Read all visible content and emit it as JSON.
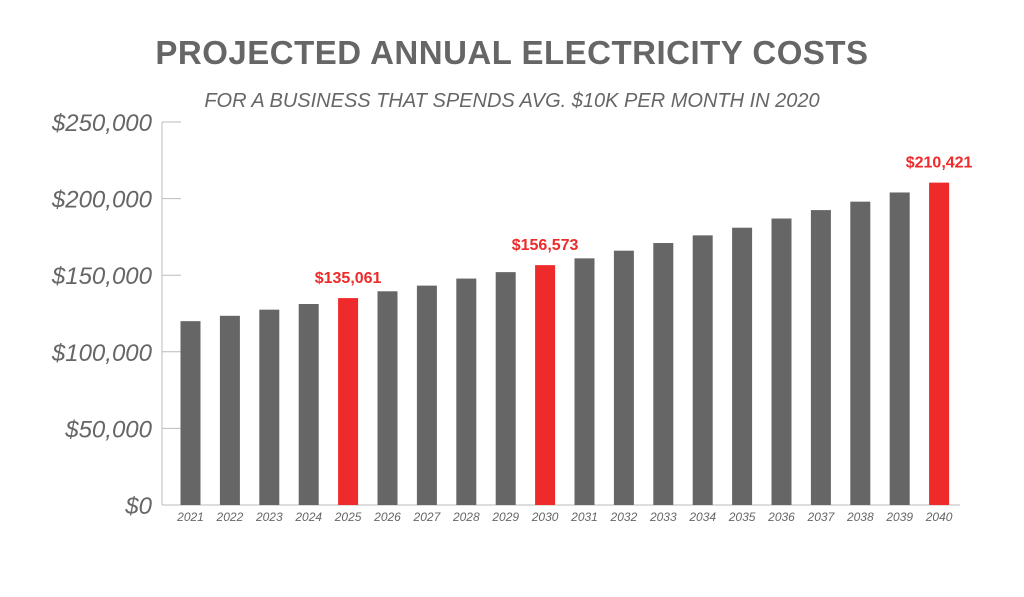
{
  "chart_data": {
    "type": "bar",
    "title": "PROJECTED ANNUAL ELECTRICITY COSTS",
    "subtitle": "FOR A BUSINESS THAT SPENDS AVG. $10K PER MONTH IN 2020",
    "xlabel": "",
    "ylabel": "",
    "ylim": [
      0,
      250000
    ],
    "yticks": [
      0,
      50000,
      100000,
      150000,
      200000,
      250000
    ],
    "ytick_labels": [
      "$0",
      "$50,000",
      "$100,000",
      "$150,000",
      "$200,000",
      "$250,000"
    ],
    "categories": [
      "2021",
      "2022",
      "2023",
      "2024",
      "2025",
      "2026",
      "2027",
      "2028",
      "2029",
      "2030",
      "2031",
      "2032",
      "2033",
      "2034",
      "2035",
      "2036",
      "2037",
      "2038",
      "2039",
      "2040"
    ],
    "values": [
      120000,
      123500,
      127500,
      131200,
      135061,
      139500,
      143200,
      147800,
      152000,
      156573,
      161000,
      166000,
      171000,
      176000,
      181000,
      187000,
      192500,
      198000,
      204000,
      210421
    ],
    "highlighted": [
      "2025",
      "2030",
      "2040"
    ],
    "data_labels": [
      {
        "category": "2025",
        "text": "$135,061"
      },
      {
        "category": "2030",
        "text": "$156,573"
      },
      {
        "category": "2040",
        "text": "$210,421"
      }
    ],
    "colors": {
      "bar": "#666666",
      "highlight": "#ee2a2a",
      "axis": "#bbbbbb"
    }
  }
}
